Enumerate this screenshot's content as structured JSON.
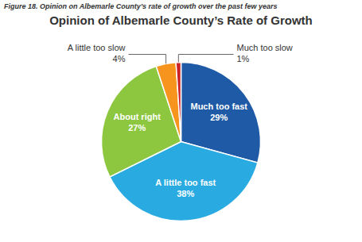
{
  "chart_data": {
    "type": "pie",
    "subtitle": "Figure 18. Opinion on Albemarle County’s rate of growth over the past few years",
    "title": "Opinion of Albemarle County’s Rate of Growth",
    "categories": [
      "Much too fast",
      "A little too fast",
      "About right",
      "A little too slow",
      "Much too slow"
    ],
    "values": [
      29,
      38,
      27,
      4,
      1
    ],
    "value_labels": [
      "29%",
      "38%",
      "27%",
      "4%",
      "1%"
    ],
    "colors": [
      "#1F5AA6",
      "#29ABE2",
      "#8DC63F",
      "#F7941D",
      "#CC2027"
    ],
    "data_labels": true
  }
}
